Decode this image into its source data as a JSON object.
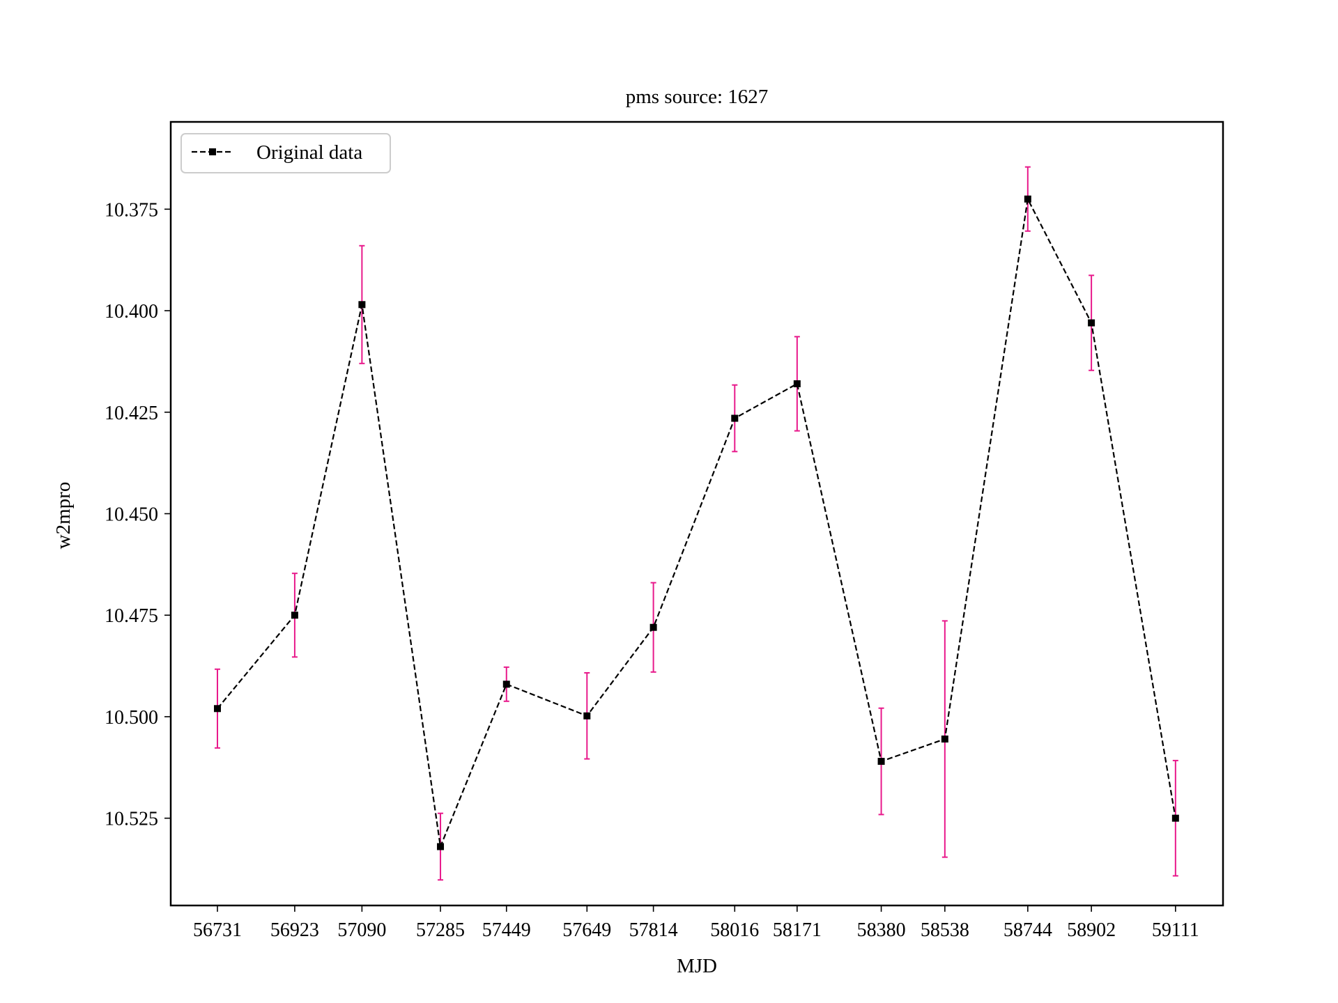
{
  "chart_data": {
    "type": "line",
    "title": "pms source: 1627",
    "xlabel": "MJD",
    "ylabel": "w2mpro",
    "y_inverted": true,
    "ylim": [
      10.5465,
      10.3535
    ],
    "yticks": [
      10.375,
      10.4,
      10.425,
      10.45,
      10.475,
      10.5,
      10.525
    ],
    "ytick_labels": [
      "10.375",
      "10.400",
      "10.425",
      "10.450",
      "10.475",
      "10.500",
      "10.525"
    ],
    "xlim": [
      56615,
      59229
    ],
    "x_tick_labels": [
      "56731",
      "56923",
      "57090",
      "57285",
      "57449",
      "57649",
      "57814",
      "58016",
      "58171",
      "58380",
      "58538",
      "58744",
      "58902",
      "59111"
    ],
    "grid": false,
    "legend": {
      "position": "top-left",
      "entries": [
        "Original data"
      ]
    },
    "series": [
      {
        "name": "Original data",
        "line_style": "dashed",
        "marker": "square",
        "color": "#000000",
        "errorbar_color": "#e8198b",
        "x": [
          56731,
          56923,
          57090,
          57285,
          57449,
          57649,
          57814,
          58016,
          58171,
          58380,
          58538,
          58744,
          58902,
          59111
        ],
        "y": [
          10.498,
          10.475,
          10.3985,
          10.532,
          10.492,
          10.4998,
          10.478,
          10.4265,
          10.418,
          10.511,
          10.5055,
          10.3725,
          10.403,
          10.525
        ],
        "yerr": [
          0.0097,
          0.0103,
          0.0145,
          0.0082,
          0.0042,
          0.0106,
          0.011,
          0.0082,
          0.0116,
          0.0131,
          0.0291,
          0.0079,
          0.0117,
          0.0142
        ]
      }
    ]
  }
}
